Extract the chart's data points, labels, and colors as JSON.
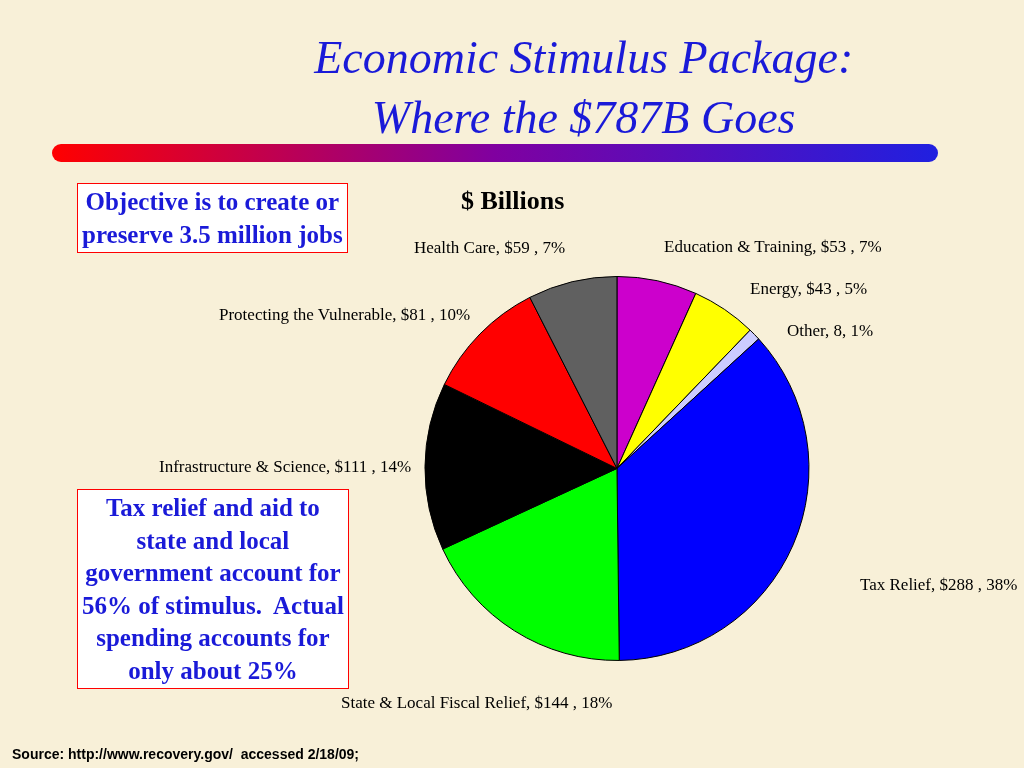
{
  "chart_data": {
    "type": "pie",
    "title": "Economic Stimulus Package:\nWhere the $787B Goes",
    "subtitle": "$ Billions",
    "categories": [
      "Education & Training",
      "Energy",
      "Other",
      "Tax Relief",
      "State & Local Fiscal Relief",
      "Infrastructure & Science",
      "Protecting the Vulnerable",
      "Health Care"
    ],
    "values": [
      53,
      43,
      8,
      288,
      144,
      111,
      81,
      59
    ],
    "value_labels": [
      "$53 , 7%",
      "$43 , 5%",
      "8, 1%",
      "$288 , 38%",
      "$144 , 18%",
      "$111 , 14%",
      "$81 , 10%",
      "$59 , 7%"
    ],
    "colors": [
      "#cc00cc",
      "#ffff00",
      "#ccccff",
      "#0000ff",
      "#00ff00",
      "#000000",
      "#ff0000",
      "#606060"
    ],
    "legend": false,
    "annotations": [
      "Objective is to create or\npreserve 3.5 million jobs",
      "Tax relief and aid to\nstate and local\ngovernment account for\n56% of stimulus.  Actual\nspending accounts for\nonly about 25%",
      "Source: http://www.recovery.gov/  accessed 2/18/09;"
    ]
  }
}
